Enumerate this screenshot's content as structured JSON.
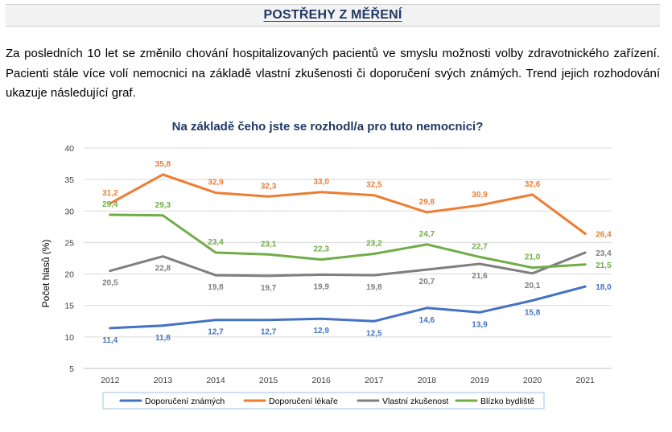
{
  "header": {
    "title": "POSTŘEHY Z MĚŘENÍ"
  },
  "intro": {
    "text": "Za posledních 10 let se změnilo chování hospitalizovaných pacientů ve smyslu možnosti volby zdravotnického zařízení. Pacienti stále více volí nemocnici na základě vlastní zkušenosti či doporučení svých známých. Trend jejich rozhodování ukazuje následující graf."
  },
  "chart_data": {
    "type": "line",
    "title": "Na základě čeho jste se rozhodl/a pro tuto nemocnici?",
    "xlabel": "",
    "ylabel": "Počet hlasů (%)",
    "ylim": [
      5,
      40
    ],
    "yticks": [
      5,
      10,
      15,
      20,
      25,
      30,
      35,
      40
    ],
    "grid": true,
    "legend_position": "bottom",
    "categories": [
      "2012",
      "2013",
      "2014",
      "2015",
      "2016",
      "2017",
      "2018",
      "2019",
      "2020",
      "2021"
    ],
    "series": [
      {
        "name": "Doporučení známých",
        "color": "#4472c4",
        "values": [
          11.4,
          11.8,
          12.7,
          12.7,
          12.9,
          12.5,
          14.6,
          13.9,
          15.8,
          18.0
        ],
        "labels": [
          "11,4",
          "11,8",
          "12,7",
          "12,7",
          "12,9",
          "12,5",
          "14,6",
          "13,9",
          "15,8",
          "18,0"
        ],
        "label_pos": "below"
      },
      {
        "name": "Doporučení lékaře",
        "color": "#ed7d31",
        "values": [
          31.2,
          35.8,
          32.9,
          32.3,
          33.0,
          32.5,
          29.8,
          30.9,
          32.6,
          26.4
        ],
        "labels": [
          "31,2",
          "35,8",
          "32,9",
          "32,3",
          "33,0",
          "32,5",
          "29,8",
          "30,9",
          "32,6",
          "26,4"
        ],
        "label_pos": "above"
      },
      {
        "name": "Vlastní zkušenost",
        "color": "#7f7f7f",
        "values": [
          20.5,
          22.8,
          19.8,
          19.7,
          19.9,
          19.8,
          20.7,
          21.6,
          20.1,
          23.4
        ],
        "labels": [
          "20,5",
          "22,8",
          "19,8",
          "19,7",
          "19,9",
          "19,8",
          "20,7",
          "21,6",
          "20,1",
          "23,4"
        ],
        "label_pos": "below"
      },
      {
        "name": "Blízko bydliště",
        "color": "#70ad47",
        "values": [
          29.4,
          29.3,
          23.4,
          23.1,
          22.3,
          23.2,
          24.7,
          22.7,
          21.0,
          21.5
        ],
        "labels": [
          "29,4",
          "29,3",
          "23,4",
          "23,1",
          "22,3",
          "23,2",
          "24,7",
          "22,7",
          "21,0",
          "21,5"
        ],
        "label_pos": "above"
      }
    ]
  }
}
